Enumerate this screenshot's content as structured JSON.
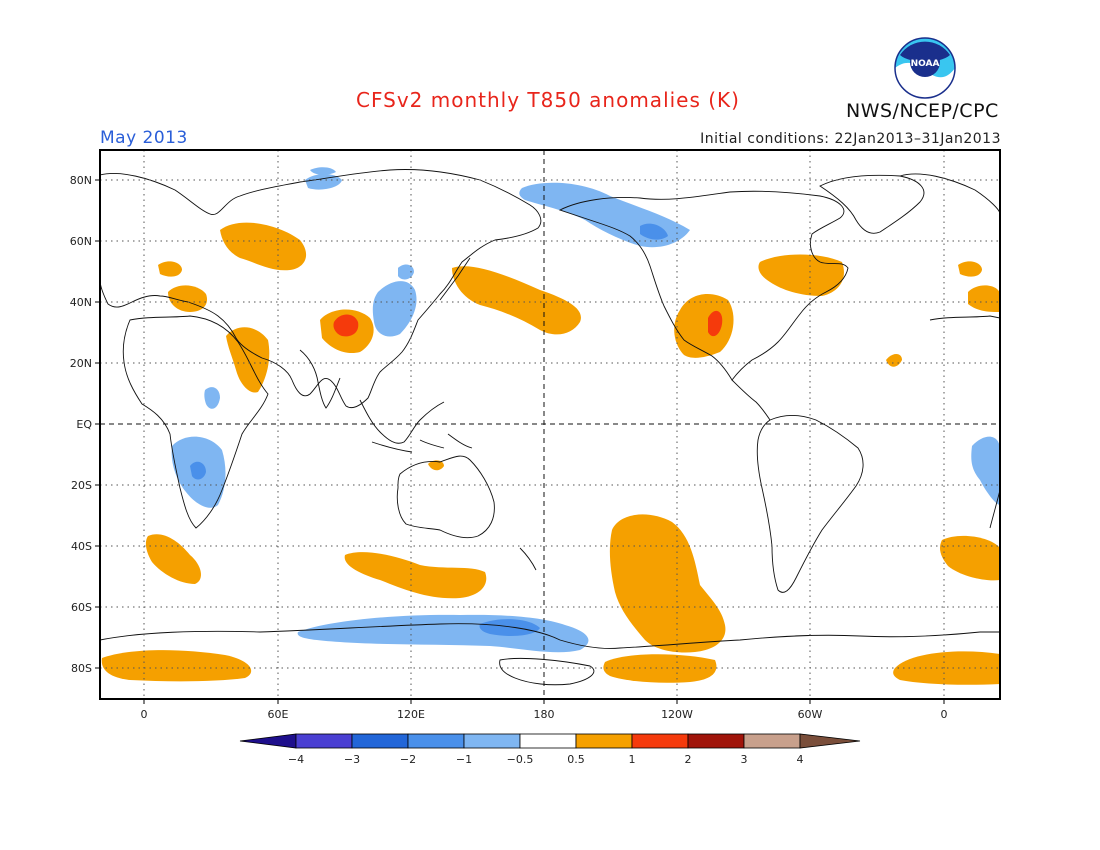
{
  "title": "CFSv2 monthly T850 anomalies (K)",
  "agency": "NWS/NCEP/CPC",
  "logo": {
    "text": "NOAA",
    "icon": "noaa-logo"
  },
  "target_month": "May 2013",
  "initial_conditions": "Initial conditions: 22Jan2013–31Jan2013",
  "lat_labels": [
    "80N",
    "60N",
    "40N",
    "20N",
    "EQ",
    "20S",
    "40S",
    "60S",
    "80S"
  ],
  "lon_labels": [
    "0",
    "60E",
    "120E",
    "180",
    "120W",
    "60W",
    "0"
  ],
  "colorbar": {
    "tick_labels": [
      "−4",
      "−3",
      "−2",
      "−1",
      "−0.5",
      "0.5",
      "1",
      "2",
      "3",
      "4"
    ],
    "colors": [
      "#1e0f8c",
      "#4a3fd2",
      "#2266d8",
      "#4a90ea",
      "#7fb6f2",
      "#ffffff",
      "#f5a000",
      "#f53a0c",
      "#a0140a",
      "#c8a08c",
      "#7a4e3a"
    ]
  },
  "colors": {
    "warm_1": "#f5a000",
    "warm_2": "#f53a0c",
    "cool_1": "#7fb6f2",
    "cool_2": "#4a90ea"
  }
}
